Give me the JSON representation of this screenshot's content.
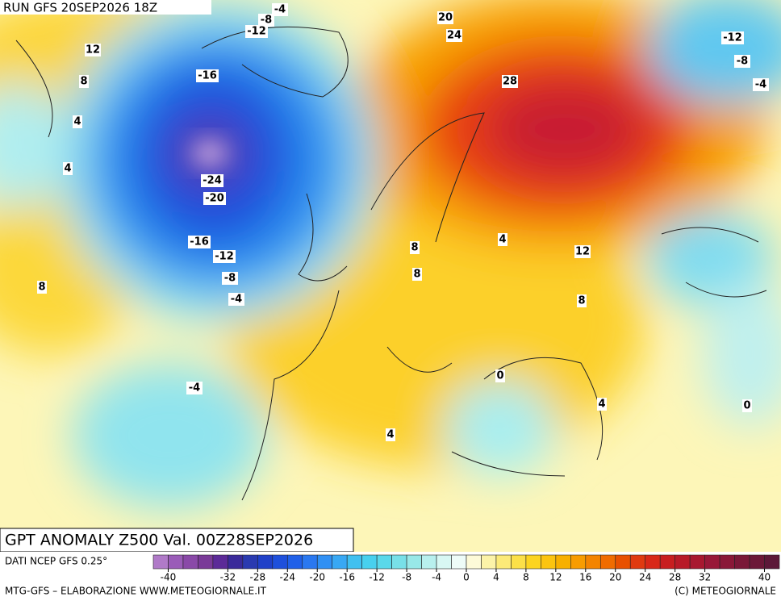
{
  "header": {
    "run": "RUN GFS 20SEP2026 18Z"
  },
  "map": {
    "title": "GPT ANOMALY Z500 Val. 00Z28SEP2026",
    "contour_labels": [
      -4,
      -8,
      -12,
      12,
      8,
      -16,
      4,
      4,
      -24,
      -20,
      -16,
      -12,
      -8,
      -4,
      8,
      20,
      24,
      28,
      -12,
      -8,
      -4,
      4,
      8,
      8,
      12,
      8,
      0,
      4,
      0,
      -4,
      4
    ]
  },
  "legend": {
    "source": "DATI NCEP GFS 0.25°",
    "ticks": [
      -40,
      -32,
      -28,
      -24,
      -20,
      -16,
      -12,
      -8,
      -4,
      0,
      4,
      8,
      12,
      16,
      20,
      24,
      28,
      32,
      40
    ],
    "range": [
      -42,
      42
    ],
    "colors": [
      "#b07ac8",
      "#9a5cb8",
      "#8a49a8",
      "#7a3a98",
      "#5c2a98",
      "#3a2a9a",
      "#2a3ab0",
      "#2040c8",
      "#1e50dc",
      "#2060e8",
      "#2a78f0",
      "#3090f4",
      "#38a8f4",
      "#40c0f0",
      "#48d0ee",
      "#5ad8ea",
      "#78e0e8",
      "#98e8e8",
      "#b8f0ee",
      "#d8f8f4",
      "#eefcf8",
      "#fdfad8",
      "#fcf3a8",
      "#fcea78",
      "#fce048",
      "#fcd420",
      "#fcc410",
      "#f8b000",
      "#f89c00",
      "#f48400",
      "#f06c00",
      "#e85000",
      "#e03a10",
      "#d82818",
      "#c81e20",
      "#b81a28",
      "#a81830",
      "#981838",
      "#8a1838",
      "#7a1838",
      "#6c1838",
      "#5c1838"
    ],
    "credit_left": "MTG-GFS – ELABORAZIONE WWW.METEOGIORNALE.IT",
    "credit_right": "(C) METEOGIORNALE"
  }
}
